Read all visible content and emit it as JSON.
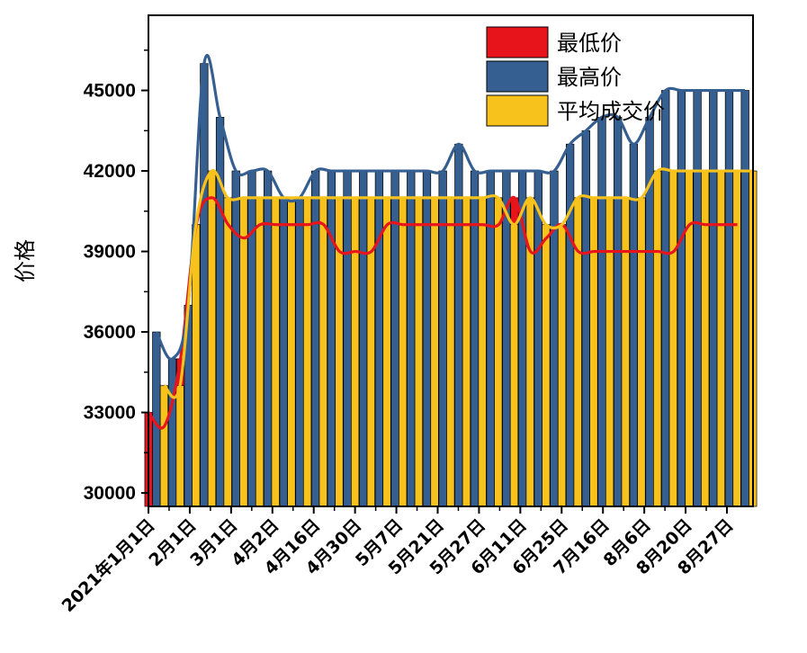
{
  "chart_data": {
    "type": "bar",
    "title": "",
    "xlabel": "",
    "ylabel": "价格",
    "ylim": [
      29500,
      47800
    ],
    "yticks": [
      30000,
      33000,
      36000,
      39000,
      42000,
      45000
    ],
    "ytick_labels": [
      "30000",
      "33000",
      "36000",
      "39000",
      "42000",
      "45000"
    ],
    "xtick_labels": [
      "2021年1月1日",
      "2月1日",
      "3月1日",
      "4月2日",
      "4月16日",
      "4月30日",
      "5月7日",
      "5月21日",
      "5月27日",
      "6月11日",
      "6月25日",
      "7月16日",
      "8月6日",
      "8月20日",
      "8月27日"
    ],
    "grid": false,
    "legend_position": "top-right",
    "categories": [
      "1",
      "2",
      "3",
      "4",
      "5",
      "6",
      "7",
      "8",
      "9",
      "10",
      "11",
      "12",
      "13",
      "14",
      "15",
      "16",
      "17",
      "18",
      "19",
      "20",
      "21",
      "22",
      "23",
      "24",
      "25",
      "26",
      "27",
      "28",
      "29",
      "30",
      "31",
      "32",
      "33",
      "34",
      "35",
      "36",
      "37",
      "38"
    ],
    "series": [
      {
        "name": "最低价",
        "color": "#e8141c",
        "values": [
          33000,
          32500,
          35000,
          40000,
          41000,
          40000,
          39500,
          40000,
          40000,
          40000,
          40000,
          40000,
          39000,
          39000,
          39000,
          40000,
          40000,
          40000,
          40000,
          40000,
          40000,
          40000,
          40000,
          41000,
          39000,
          39500,
          40000,
          39000,
          39000,
          39000,
          39000,
          39000,
          39000,
          39000,
          40000,
          40000,
          40000,
          40000
        ]
      },
      {
        "name": "最高价",
        "color": "#365f91",
        "values": [
          36000,
          35000,
          37000,
          46000,
          44000,
          42000,
          42000,
          42000,
          41000,
          41000,
          42000,
          42000,
          42000,
          42000,
          42000,
          42000,
          42000,
          42000,
          42000,
          43000,
          42000,
          42000,
          42000,
          42000,
          42000,
          42000,
          43000,
          43500,
          44000,
          44000,
          43000,
          44000,
          45000,
          45000,
          45000,
          45000,
          45000,
          45000
        ]
      },
      {
        "name": "平均成交价",
        "color": "#f7c21c",
        "values": [
          34000,
          34000,
          40000,
          42000,
          41000,
          41000,
          41000,
          41000,
          41000,
          41000,
          41000,
          41000,
          41000,
          41000,
          41000,
          41000,
          41000,
          41000,
          41000,
          41000,
          41000,
          41000,
          40000,
          41000,
          40000,
          40000,
          41000,
          41000,
          41000,
          41000,
          41000,
          42000,
          42000,
          42000,
          42000,
          42000,
          42000,
          42000
        ]
      }
    ]
  }
}
